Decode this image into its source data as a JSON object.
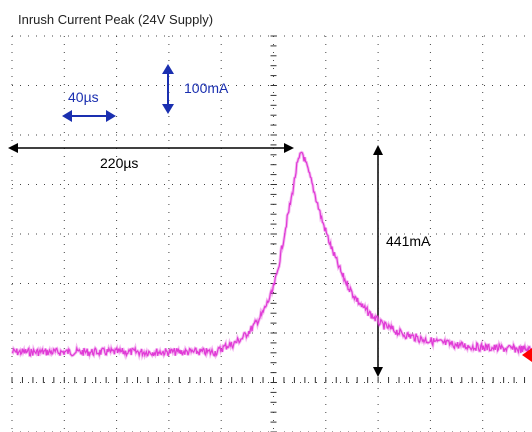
{
  "chart_data": {
    "type": "line",
    "title": "Inrush Current Peak (24V Supply)",
    "scale_labels": {
      "time_div": "40µs",
      "current_div": "100mA"
    },
    "annotations": {
      "width": "220µs",
      "peak": "441mA"
    },
    "x_unit": "µs",
    "y_unit": "mA",
    "xlim": [
      -40,
      500
    ],
    "ylim": [
      0,
      460
    ],
    "grid": true,
    "series": [
      {
        "color": "#e03ad6",
        "x": [
          0,
          40,
          80,
          120,
          155,
          160,
          166,
          170,
          180,
          190,
          200,
          210,
          215,
          220,
          225,
          230,
          235,
          240,
          250,
          260,
          270,
          280,
          290,
          300,
          320,
          340,
          360,
          380,
          400,
          420,
          440,
          460,
          480,
          500
        ],
        "y": [
          0,
          0,
          0,
          0,
          0,
          8,
          15,
          16,
          30,
          52,
          82,
          130,
          170,
          230,
          290,
          345,
          410,
          441,
          370,
          290,
          225,
          170,
          130,
          100,
          60,
          40,
          28,
          20,
          14,
          10,
          8,
          6,
          5,
          5
        ]
      }
    ],
    "trigger_marker_color": "#ff0000"
  }
}
